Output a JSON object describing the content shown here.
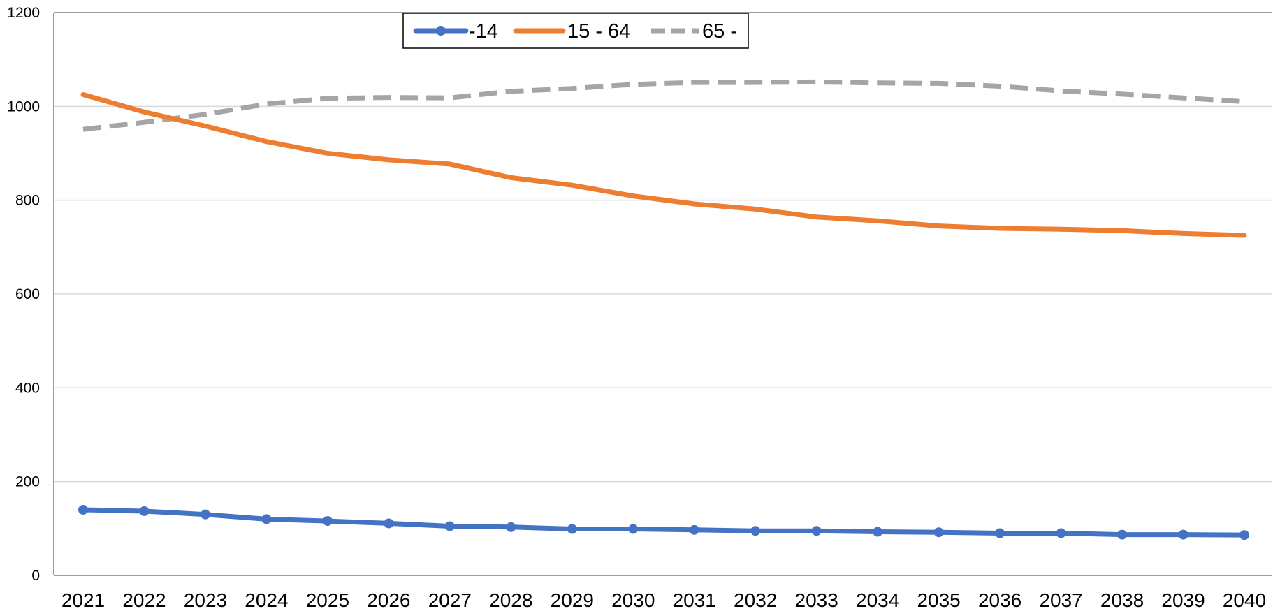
{
  "chart_data": {
    "type": "line",
    "title": "",
    "xlabel": "",
    "ylabel": "",
    "ylim": [
      0,
      1200
    ],
    "y_ticks": [
      0,
      200,
      400,
      600,
      800,
      1000,
      1200
    ],
    "grid": true,
    "legend_position": "top-center",
    "categories": [
      "2021",
      "2022",
      "2023",
      "2024",
      "2025",
      "2026",
      "2027",
      "2028",
      "2029",
      "2030",
      "2031",
      "2032",
      "2033",
      "2034",
      "2035",
      "2036",
      "2037",
      "2038",
      "2039",
      "2040"
    ],
    "series": [
      {
        "name": "-14",
        "color": "#4472c4",
        "style": "solid-markers",
        "values": [
          140,
          137,
          130,
          120,
          116,
          111,
          105,
          103,
          99,
          99,
          97,
          95,
          95,
          93,
          92,
          90,
          90,
          87,
          87,
          86
        ]
      },
      {
        "name": "15 - 64",
        "color": "#ed7d31",
        "style": "solid",
        "values": [
          1025,
          988,
          958,
          925,
          900,
          886,
          877,
          848,
          832,
          809,
          792,
          781,
          764,
          756,
          745,
          740,
          738,
          735,
          729,
          725
        ]
      },
      {
        "name": "65 -",
        "color": "#a5a5a5",
        "style": "dashed",
        "values": [
          951,
          966,
          983,
          1005,
          1017,
          1019,
          1018,
          1032,
          1038,
          1047,
          1051,
          1051,
          1052,
          1050,
          1049,
          1043,
          1033,
          1026,
          1018,
          1010
        ]
      }
    ]
  }
}
